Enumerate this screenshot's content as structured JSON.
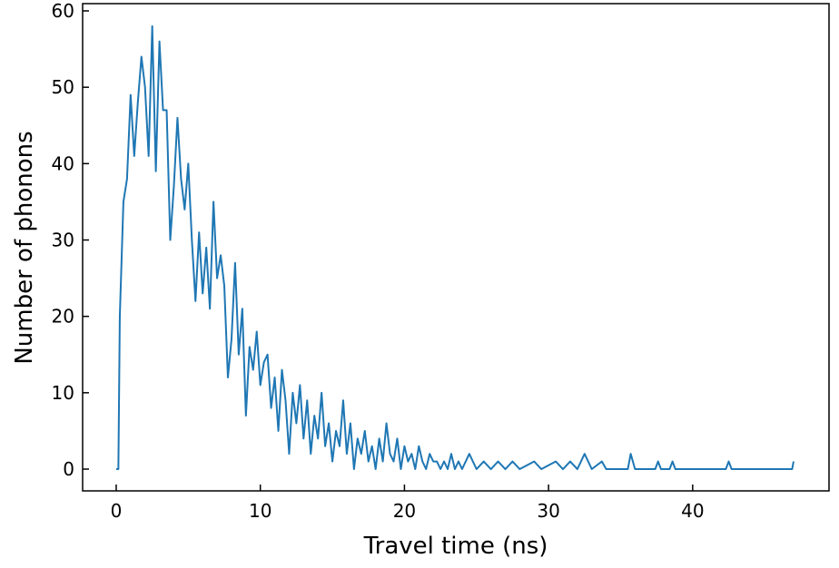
{
  "chart_data": {
    "type": "line",
    "x_label": "Travel time (ns)",
    "y_label": "Number of phonons",
    "x": [
      0,
      0.15,
      0.25,
      0.5,
      0.75,
      1.0,
      1.25,
      1.5,
      1.75,
      2.0,
      2.25,
      2.5,
      2.75,
      3.0,
      3.25,
      3.5,
      3.75,
      4.0,
      4.25,
      4.5,
      4.75,
      5.0,
      5.25,
      5.5,
      5.75,
      6.0,
      6.25,
      6.5,
      6.75,
      7.0,
      7.25,
      7.5,
      7.75,
      8.0,
      8.25,
      8.5,
      8.75,
      9.0,
      9.25,
      9.5,
      9.75,
      10.0,
      10.25,
      10.5,
      10.75,
      11.0,
      11.25,
      11.5,
      11.75,
      12.0,
      12.25,
      12.5,
      12.75,
      13.0,
      13.25,
      13.5,
      13.75,
      14.0,
      14.25,
      14.5,
      14.75,
      15.0,
      15.25,
      15.5,
      15.75,
      16.0,
      16.25,
      16.5,
      16.75,
      17.0,
      17.25,
      17.5,
      17.75,
      18.0,
      18.25,
      18.5,
      18.75,
      19.0,
      19.25,
      19.5,
      19.75,
      20.0,
      20.25,
      20.5,
      20.75,
      21.0,
      21.25,
      21.5,
      21.75,
      22.0,
      22.25,
      22.5,
      22.75,
      23.0,
      23.25,
      23.5,
      23.75,
      24.0,
      24.5,
      25.0,
      25.5,
      26.0,
      26.5,
      27.0,
      27.5,
      28.0,
      29.0,
      29.5,
      30.5,
      31.0,
      31.5,
      32.0,
      32.5,
      33.0,
      33.7,
      34.0,
      35.5,
      35.7,
      36.0,
      37.4,
      37.6,
      37.8,
      38.4,
      38.6,
      38.8,
      42.3,
      42.5,
      42.7,
      46.9,
      47.0
    ],
    "series": [
      {
        "name": "phonons",
        "color": "#1f77b4",
        "values": [
          0,
          0,
          20,
          35,
          38,
          49,
          41,
          48,
          54,
          50,
          41,
          58,
          39,
          56,
          47,
          47,
          30,
          37,
          46,
          38,
          34,
          40,
          30,
          22,
          31,
          23,
          29,
          21,
          35,
          25,
          28,
          24,
          12,
          17,
          27,
          15,
          21,
          7,
          16,
          13,
          18,
          11,
          14,
          15,
          8,
          12,
          5,
          13,
          9,
          2,
          10,
          6,
          11,
          4,
          9,
          2,
          7,
          4,
          10,
          3,
          6,
          1,
          5,
          3,
          9,
          2,
          6,
          0,
          4,
          2,
          5,
          1,
          3,
          0,
          4,
          1,
          6,
          2,
          1,
          4,
          0,
          3,
          1,
          2,
          0,
          3,
          1,
          0,
          2,
          1,
          1,
          0,
          1,
          0,
          2,
          0,
          1,
          0,
          2,
          0,
          1,
          0,
          1,
          0,
          1,
          0,
          1,
          0,
          1,
          0,
          1,
          0,
          2,
          0,
          1,
          0,
          0,
          2,
          0,
          0,
          1,
          0,
          0,
          1,
          0,
          0,
          1,
          0,
          0,
          1
        ]
      }
    ],
    "xlim": [
      -2.33,
      49.46
    ],
    "ylim": [
      -2.85,
      60.95
    ],
    "xticks": [
      0,
      10,
      20,
      30,
      40
    ],
    "yticks": [
      0,
      10,
      20,
      30,
      40,
      50,
      60
    ]
  }
}
